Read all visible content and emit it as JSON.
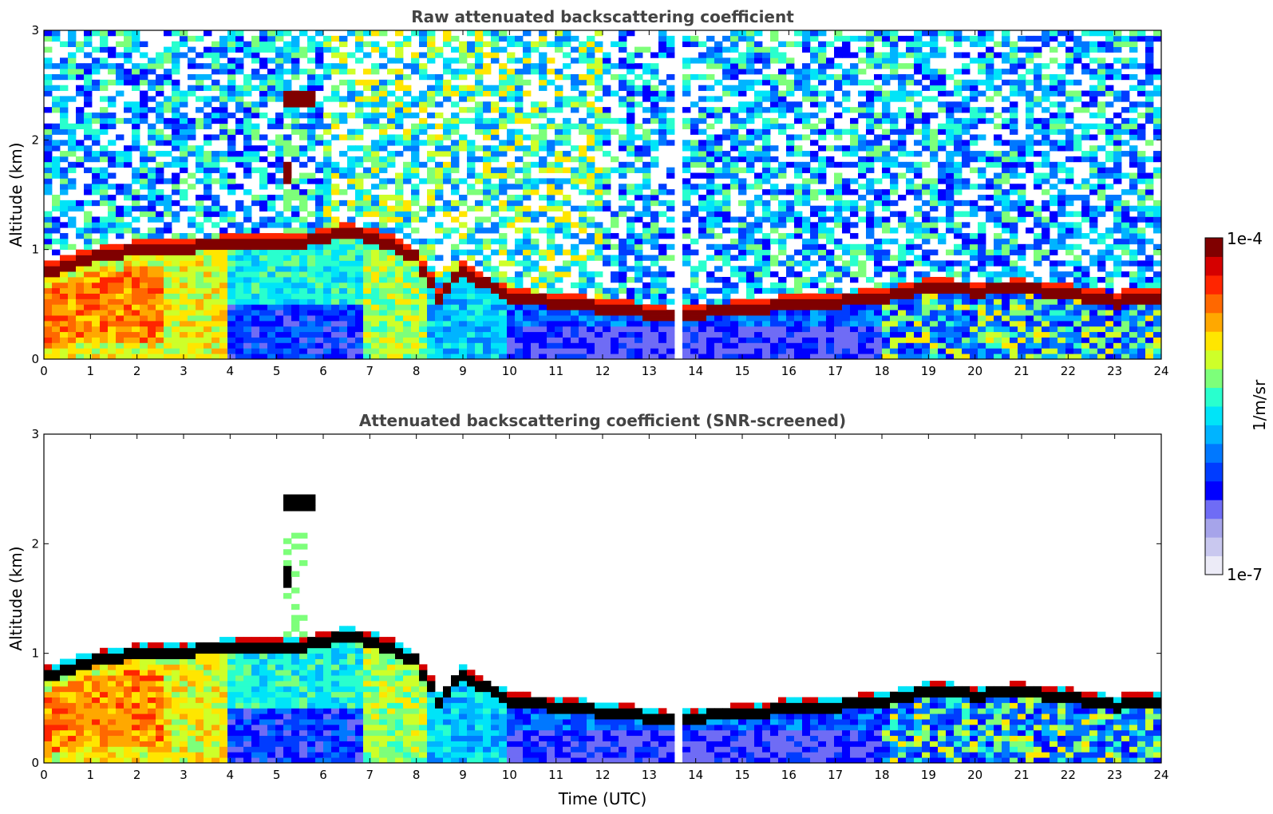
{
  "chart_data": [
    {
      "type": "heatmap",
      "title": "Raw attenuated backscattering coefficient",
      "xlabel": "",
      "ylabel": "Altitude (km)",
      "xlim": [
        0,
        24
      ],
      "ylim": [
        0,
        3
      ],
      "x_ticks": [
        "0",
        "1",
        "2",
        "3",
        "4",
        "5",
        "6",
        "7",
        "8",
        "9",
        "10",
        "11",
        "12",
        "13",
        "14",
        "15",
        "16",
        "17",
        "18",
        "19",
        "20",
        "21",
        "22",
        "23",
        "24"
      ],
      "y_ticks": [
        "0",
        "1",
        "2",
        "3"
      ],
      "screened": false,
      "layer_top_km": {
        "x": [
          0,
          0.5,
          1,
          2,
          3,
          4,
          5,
          5.5,
          6,
          6.5,
          7,
          7.5,
          8,
          8.5,
          9,
          9.5,
          10,
          11,
          12,
          13,
          13.5,
          14,
          15,
          16,
          17,
          18,
          18.5,
          19,
          20,
          21,
          22,
          23,
          23.5,
          24
        ],
        "y": [
          0.78,
          0.86,
          0.92,
          1.0,
          1.02,
          1.04,
          1.06,
          1.04,
          1.12,
          1.14,
          1.12,
          1.04,
          0.92,
          0.55,
          0.82,
          0.68,
          0.55,
          0.52,
          0.47,
          0.42,
          0.38,
          0.42,
          0.44,
          0.5,
          0.52,
          0.55,
          0.6,
          0.65,
          0.62,
          0.64,
          0.6,
          0.52,
          0.56,
          0.55
        ]
      }
    },
    {
      "type": "heatmap",
      "title": "Attenuated backscattering coefficient (SNR-screened)",
      "xlabel": "Time (UTC)",
      "ylabel": "Altitude (km)",
      "xlim": [
        0,
        24
      ],
      "ylim": [
        0,
        3
      ],
      "x_ticks": [
        "0",
        "1",
        "2",
        "3",
        "4",
        "5",
        "6",
        "7",
        "8",
        "9",
        "10",
        "11",
        "12",
        "13",
        "14",
        "15",
        "16",
        "17",
        "18",
        "19",
        "20",
        "21",
        "22",
        "23",
        "24"
      ],
      "y_ticks": [
        "0",
        "1",
        "2",
        "3"
      ],
      "screened": true,
      "layer_top_km": {
        "x": [
          0,
          0.5,
          1,
          2,
          3,
          4,
          5,
          5.5,
          6,
          6.5,
          7,
          7.5,
          8,
          8.5,
          9,
          9.5,
          10,
          11,
          12,
          13,
          13.5,
          14,
          15,
          16,
          17,
          18,
          18.5,
          19,
          20,
          21,
          22,
          23,
          23.5,
          24
        ],
        "y": [
          0.78,
          0.86,
          0.92,
          1.0,
          1.02,
          1.04,
          1.06,
          1.04,
          1.12,
          1.14,
          1.12,
          1.04,
          0.92,
          0.55,
          0.82,
          0.68,
          0.55,
          0.52,
          0.47,
          0.42,
          0.38,
          0.42,
          0.44,
          0.5,
          0.52,
          0.55,
          0.6,
          0.65,
          0.62,
          0.64,
          0.6,
          0.52,
          0.56,
          0.55
        ]
      }
    }
  ],
  "colorbar": {
    "max_label": "1e-4",
    "min_label": "1e-7",
    "unit_label": "1/m/sr",
    "scale": "log",
    "colors": [
      "#ecebf7",
      "#c9c8ef",
      "#a6a4ea",
      "#6f6cf5",
      "#0000ff",
      "#003cff",
      "#0078ff",
      "#00b4ff",
      "#00e4f8",
      "#29ffce",
      "#7dff7a",
      "#ceff29",
      "#ffe600",
      "#ffa800",
      "#ff6800",
      "#ff2500",
      "#d50000",
      "#800000"
    ]
  },
  "gap_time_utc": [
    13.5,
    13.72
  ]
}
